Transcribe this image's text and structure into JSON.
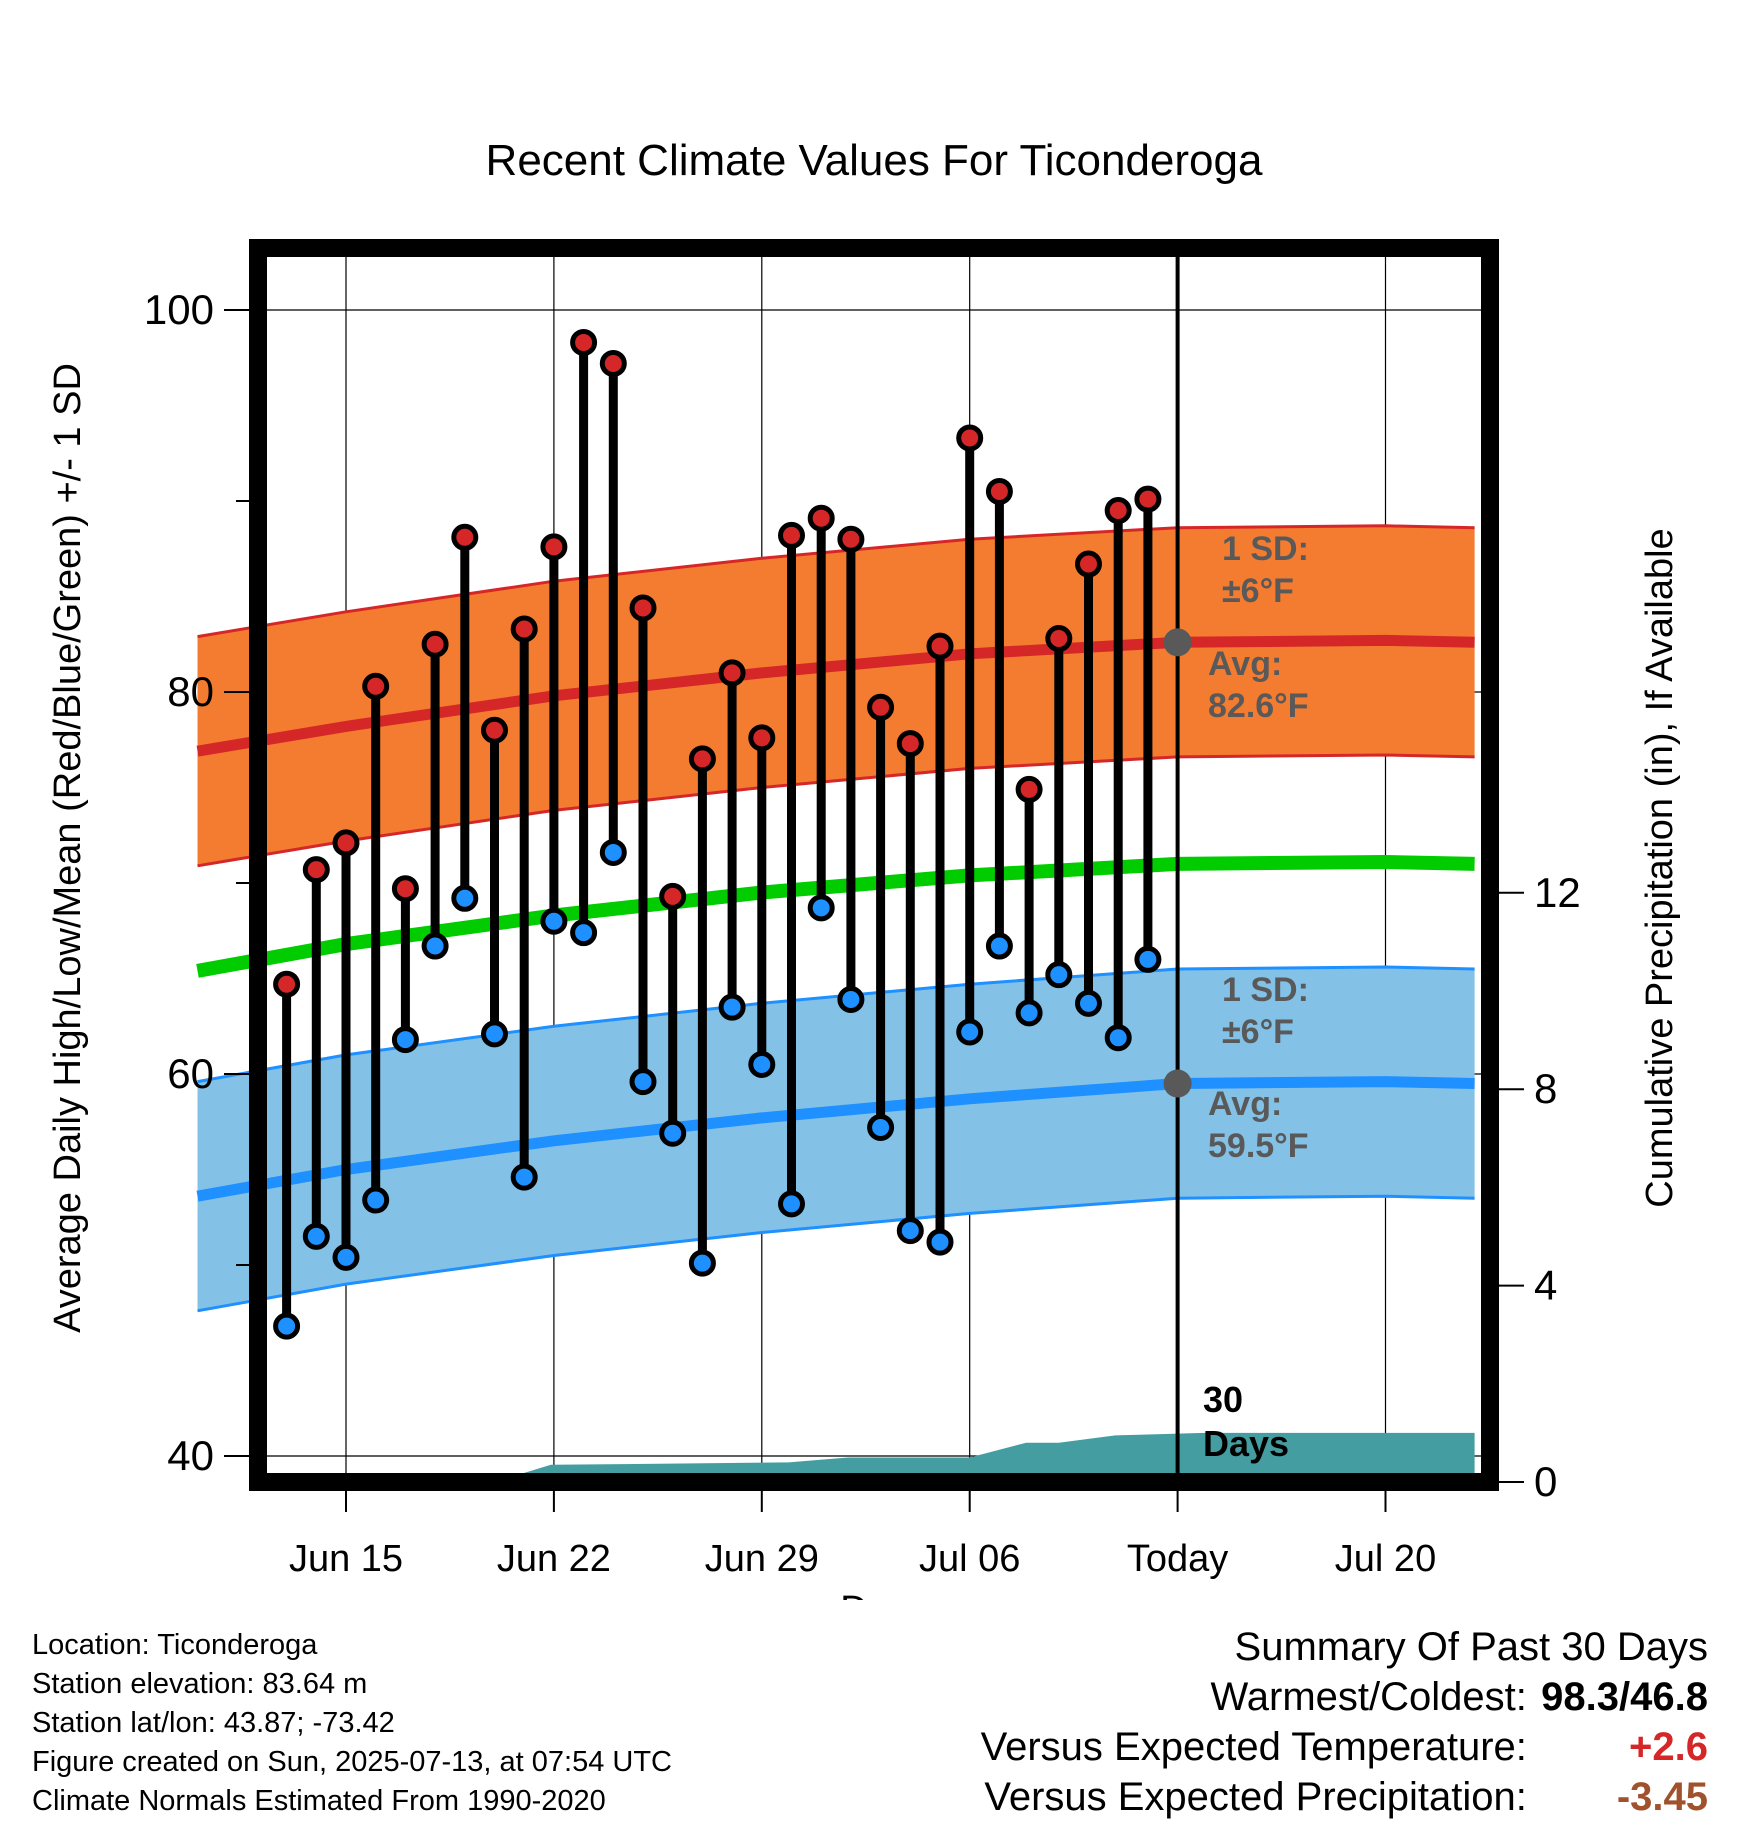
{
  "chart_data": {
    "type": "line",
    "title": "Recent Climate Values For Ticonderoga",
    "xlabel": "Day",
    "ylabel_left": "Average Daily High/Low/Mean (Red/Blue/Green) +/- 1 SD",
    "ylabel_right": "Cumulative Precipitation (in), If Available",
    "x_domain": [
      "2025-06-10",
      "2025-07-23"
    ],
    "x_ticks": [
      {
        "date": "2025-06-15",
        "label": "Jun 15"
      },
      {
        "date": "2025-06-22",
        "label": "Jun 22"
      },
      {
        "date": "2025-06-29",
        "label": "Jun 29"
      },
      {
        "date": "2025-07-06",
        "label": "Jul 06"
      },
      {
        "date": "2025-07-13",
        "label": "Today"
      },
      {
        "date": "2025-07-20",
        "label": "Jul 20"
      }
    ],
    "ylim_left": [
      39,
      103
    ],
    "y_ticks_left": [
      40,
      60,
      80,
      100
    ],
    "ylim_right": [
      0,
      24
    ],
    "y_ticks_right": [
      0,
      4,
      8,
      12
    ],
    "grid": true,
    "observed": {
      "dates": [
        "2025-06-13",
        "2025-06-14",
        "2025-06-15",
        "2025-06-16",
        "2025-06-17",
        "2025-06-18",
        "2025-06-19",
        "2025-06-20",
        "2025-06-21",
        "2025-06-22",
        "2025-06-23",
        "2025-06-24",
        "2025-06-25",
        "2025-06-26",
        "2025-06-27",
        "2025-06-28",
        "2025-06-29",
        "2025-06-30",
        "2025-07-01",
        "2025-07-02",
        "2025-07-03",
        "2025-07-04",
        "2025-07-05",
        "2025-07-06",
        "2025-07-07",
        "2025-07-08",
        "2025-07-09",
        "2025-07-10",
        "2025-07-11",
        "2025-07-12"
      ],
      "highs": [
        64.7,
        70.7,
        72.1,
        80.3,
        69.7,
        82.5,
        88.1,
        78.0,
        83.3,
        87.6,
        98.3,
        97.2,
        84.4,
        69.3,
        76.5,
        81.0,
        77.6,
        88.2,
        89.1,
        88.0,
        79.2,
        77.3,
        82.4,
        93.3,
        90.5,
        74.9,
        82.8,
        86.7,
        89.5,
        90.1
      ],
      "lows": [
        46.8,
        51.5,
        50.4,
        53.4,
        61.8,
        66.7,
        69.2,
        62.1,
        54.6,
        68.0,
        67.4,
        71.6,
        59.6,
        56.9,
        50.1,
        63.5,
        60.5,
        53.2,
        68.7,
        63.9,
        57.2,
        51.8,
        51.2,
        62.2,
        66.7,
        63.2,
        65.2,
        63.7,
        61.9,
        66.0
      ]
    },
    "normals": {
      "dates": [
        "2025-06-10",
        "2025-06-15",
        "2025-06-22",
        "2025-06-29",
        "2025-07-06",
        "2025-07-13",
        "2025-07-20",
        "2025-07-23"
      ],
      "avg_high": [
        76.9,
        78.2,
        79.8,
        81.0,
        82.0,
        82.6,
        82.7,
        82.6
      ],
      "avg_low": [
        53.6,
        55.0,
        56.5,
        57.7,
        58.7,
        59.5,
        59.6,
        59.5
      ],
      "avg_mean": [
        65.4,
        66.8,
        68.3,
        69.5,
        70.4,
        71.0,
        71.1,
        71.0
      ],
      "high_sd": 6,
      "low_sd": 6
    },
    "precip": {
      "dates": [
        "2025-06-10",
        "2025-06-20",
        "2025-06-21",
        "2025-06-29",
        "2025-07-01",
        "2025-07-06",
        "2025-07-07",
        "2025-07-09",
        "2025-07-10",
        "2025-07-13",
        "2025-07-23"
      ],
      "cumulative": [
        0,
        0,
        0.35,
        0.4,
        0.5,
        0.5,
        0.8,
        0.8,
        0.95,
        1.0,
        1.0
      ]
    },
    "annotations": {
      "high_sd": [
        "1 SD:",
        "±6°F"
      ],
      "high_avg": [
        "Avg:",
        "82.6°F"
      ],
      "low_sd": [
        "1 SD:",
        "±6°F"
      ],
      "low_avg": [
        "Avg:",
        "59.5°F"
      ],
      "days": [
        "30",
        "Days"
      ]
    },
    "colors": {
      "high": "#d62728",
      "high_band": "#f47c30",
      "low": "#1e90ff",
      "low_band": "#84c1e6",
      "mean": "#00cc00",
      "precip": "#449ea1",
      "annotation": "#595959"
    }
  },
  "footer": {
    "location": "Location: Ticonderoga",
    "elevation": "Station elevation: 83.64 m",
    "latlon": "Station lat/lon: 43.87; -73.42",
    "created": "Figure created on Sun, 2025-07-13, at 07:54 UTC",
    "normals": "Climate Normals Estimated From 1990-2020"
  },
  "summary": {
    "title": "Summary Of Past 30 Days",
    "warm_cold_label": "Warmest/Coldest:",
    "warm_cold_value": "98.3/46.8",
    "temp_label": "Versus Expected Temperature:",
    "temp_value": "+2.6",
    "temp_color": "#d62728",
    "precip_label": "Versus Expected Precipitation:",
    "precip_value": "-3.45",
    "precip_color": "#a0522d"
  }
}
